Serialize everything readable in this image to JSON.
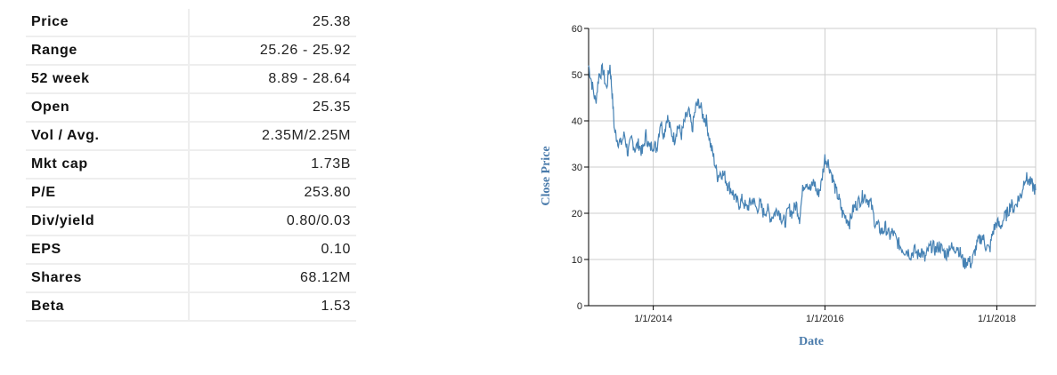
{
  "stats": [
    {
      "label": "Price",
      "value": "25.38"
    },
    {
      "label": "Range",
      "value": "25.26 - 25.92"
    },
    {
      "label": "52 week",
      "value": "8.89 - 28.64"
    },
    {
      "label": "Open",
      "value": "25.35"
    },
    {
      "label": "Vol / Avg.",
      "value": "2.35M/2.25M"
    },
    {
      "label": "Mkt cap",
      "value": "1.73B"
    },
    {
      "label": "P/E",
      "value": "253.80"
    },
    {
      "label": "Div/yield",
      "value": "0.80/0.03"
    },
    {
      "label": "EPS",
      "value": "0.10"
    },
    {
      "label": "Shares",
      "value": "68.12M"
    },
    {
      "label": "Beta",
      "value": "1.53"
    }
  ],
  "chart_data": {
    "type": "line",
    "xlabel": "Date",
    "ylabel": "Close Price",
    "x_scale": "time",
    "xlim": [
      "2013-04-01",
      "2018-06-15"
    ],
    "ylim": [
      0,
      60
    ],
    "y_ticks": [
      0,
      10,
      20,
      30,
      40,
      50,
      60
    ],
    "x_ticks": [
      {
        "date": "2014-01-01",
        "label": "1/1/2014"
      },
      {
        "date": "2016-01-01",
        "label": "1/1/2016"
      },
      {
        "date": "2018-01-01",
        "label": "1/1/2018"
      }
    ],
    "grid": true,
    "line_color": "#4682b4",
    "series": [
      {
        "x": [
          "2013-04-01",
          "2013-04-15",
          "2013-05-01",
          "2013-05-15",
          "2013-06-01",
          "2013-06-15",
          "2013-07-01",
          "2013-07-10",
          "2013-07-20",
          "2013-08-01",
          "2013-08-15",
          "2013-09-01",
          "2013-09-15",
          "2013-10-01",
          "2013-10-15",
          "2013-11-01",
          "2013-11-15",
          "2013-12-01",
          "2013-12-15",
          "2014-01-01",
          "2014-01-15",
          "2014-02-01",
          "2014-02-15",
          "2014-03-01",
          "2014-03-15",
          "2014-04-01",
          "2014-04-15",
          "2014-05-01",
          "2014-05-15",
          "2014-06-01",
          "2014-06-15",
          "2014-07-01",
          "2014-07-15",
          "2014-08-01",
          "2014-08-15",
          "2014-09-01",
          "2014-09-15",
          "2014-10-01",
          "2014-10-15",
          "2014-11-01",
          "2014-11-15",
          "2014-12-01",
          "2014-12-15",
          "2015-01-01",
          "2015-01-15",
          "2015-02-01",
          "2015-02-15",
          "2015-03-01",
          "2015-03-15",
          "2015-04-01",
          "2015-04-15",
          "2015-05-01",
          "2015-05-15",
          "2015-06-01",
          "2015-06-15",
          "2015-07-01",
          "2015-07-15",
          "2015-08-01",
          "2015-08-15",
          "2015-09-01",
          "2015-09-15",
          "2015-10-01",
          "2015-10-15",
          "2015-11-01",
          "2015-11-15",
          "2015-12-01",
          "2015-12-15",
          "2016-01-01",
          "2016-01-15",
          "2016-02-01",
          "2016-02-15",
          "2016-03-01",
          "2016-03-15",
          "2016-04-01",
          "2016-04-15",
          "2016-05-01",
          "2016-05-15",
          "2016-06-01",
          "2016-06-15",
          "2016-07-01",
          "2016-07-15",
          "2016-08-01",
          "2016-08-15",
          "2016-09-01",
          "2016-09-15",
          "2016-10-01",
          "2016-10-15",
          "2016-11-01",
          "2016-11-15",
          "2016-12-01",
          "2016-12-15",
          "2017-01-01",
          "2017-01-15",
          "2017-02-01",
          "2017-02-15",
          "2017-03-01",
          "2017-03-15",
          "2017-04-01",
          "2017-04-15",
          "2017-05-01",
          "2017-05-15",
          "2017-06-01",
          "2017-06-15",
          "2017-07-01",
          "2017-07-15",
          "2017-08-01",
          "2017-08-15",
          "2017-09-01",
          "2017-09-15",
          "2017-10-01",
          "2017-10-15",
          "2017-11-01",
          "2017-11-15",
          "2017-12-01",
          "2017-12-15",
          "2018-01-01",
          "2018-01-15",
          "2018-02-01",
          "2018-02-15",
          "2018-03-01",
          "2018-03-15",
          "2018-04-01",
          "2018-04-15",
          "2018-05-01",
          "2018-05-15",
          "2018-06-01",
          "2018-06-15"
        ],
        "y": [
          52,
          48,
          44,
          50,
          51,
          47,
          52,
          46,
          38,
          36,
          35,
          37,
          33,
          36,
          34,
          35,
          33,
          37,
          34,
          35,
          34,
          40,
          37,
          41,
          38,
          36,
          39,
          37,
          40,
          42,
          38,
          43,
          44,
          41,
          40,
          35,
          32,
          28,
          29,
          28,
          26,
          25,
          23,
          22,
          23,
          21,
          22,
          23,
          21,
          22,
          20,
          21,
          19,
          20,
          21,
          19,
          18,
          21,
          20,
          22,
          19,
          26,
          27,
          25,
          27,
          24,
          26,
          32,
          31,
          28,
          25,
          23,
          20,
          19,
          18,
          21,
          22,
          23,
          24,
          23,
          22,
          18,
          17,
          16,
          17,
          15,
          16,
          14,
          13,
          12,
          12,
          11,
          12,
          11,
          12,
          10,
          12,
          13,
          12,
          13,
          12,
          11,
          13,
          12,
          13,
          11,
          9,
          10,
          9,
          12,
          14,
          15,
          13,
          12,
          16,
          18,
          17,
          19,
          20,
          22,
          21,
          23,
          24,
          28,
          27,
          26,
          25
        ]
      }
    ]
  }
}
